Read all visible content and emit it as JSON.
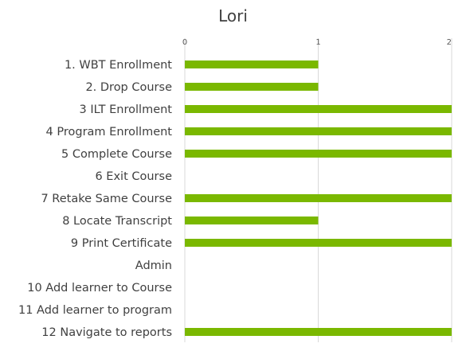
{
  "chart_data": {
    "type": "bar",
    "orientation": "horizontal",
    "title": "Lori",
    "categories": [
      "1. WBT Enrollment",
      "2. Drop Course",
      "3  ILT Enrollment",
      "4 Program Enrollment",
      "5 Complete Course",
      "6 Exit Course",
      "7 Retake Same Course",
      "8 Locate Transcript",
      "9 Print Certificate",
      "Admin",
      "10 Add learner to Course",
      "11 Add learner to program",
      "12 Navigate to reports"
    ],
    "values": [
      1,
      1,
      2,
      2,
      2,
      0,
      2,
      1,
      2,
      0,
      0,
      0,
      2
    ],
    "xlim": [
      0,
      2
    ],
    "xticks": [
      "0",
      "1",
      "2"
    ],
    "x_axis_position": "top",
    "grid": true,
    "legend": "none",
    "bar_color": "#7AB800",
    "grid_color": "#D9D9D9"
  }
}
